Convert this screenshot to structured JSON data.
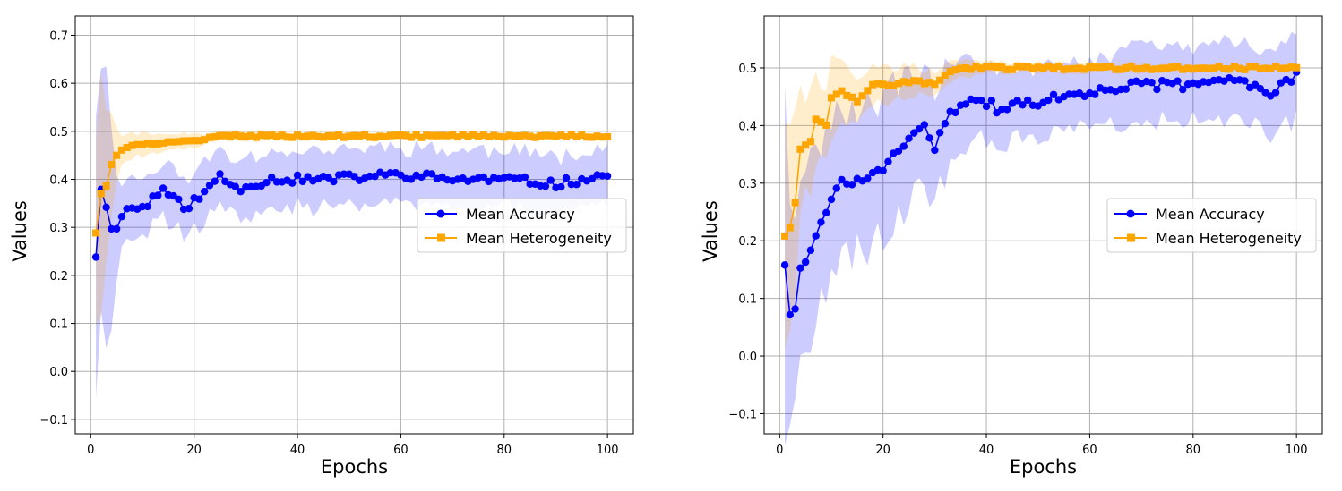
{
  "chart_data": [
    {
      "type": "line",
      "xlabel": "Epochs",
      "ylabel": "Values",
      "xlim": [
        -3,
        105
      ],
      "ylim": [
        -0.13,
        0.74
      ],
      "xticks": [
        0,
        20,
        40,
        60,
        80,
        100
      ],
      "yticks": [
        -0.1,
        0.0,
        0.1,
        0.2,
        0.3,
        0.4,
        0.5,
        0.6,
        0.7
      ],
      "ytick_labels": [
        "−0.1",
        "0.0",
        "0.1",
        "0.2",
        "0.3",
        "0.4",
        "0.5",
        "0.6",
        "0.7"
      ],
      "grid": true,
      "legend_position": "center-right",
      "series": [
        {
          "name": "Mean Accuracy",
          "color": "#0000ff",
          "marker": "circle",
          "anchors": [
            [
              1,
              0.24
            ],
            [
              2,
              0.38
            ],
            [
              3,
              0.34
            ],
            [
              4,
              0.3
            ],
            [
              5,
              0.3
            ],
            [
              7,
              0.34
            ],
            [
              10,
              0.34
            ],
            [
              14,
              0.38
            ],
            [
              18,
              0.34
            ],
            [
              22,
              0.37
            ],
            [
              25,
              0.41
            ],
            [
              28,
              0.38
            ],
            [
              35,
              0.4
            ],
            [
              45,
              0.4
            ],
            [
              60,
              0.41
            ],
            [
              70,
              0.4
            ],
            [
              80,
              0.4
            ],
            [
              90,
              0.39
            ],
            [
              100,
              0.41
            ]
          ],
          "band_half_width": [
            [
              1,
              0.33
            ],
            [
              2,
              0.32
            ],
            [
              3,
              0.25
            ],
            [
              6,
              0.07
            ],
            [
              10,
              0.06
            ],
            [
              20,
              0.06
            ],
            [
              40,
              0.06
            ],
            [
              100,
              0.06
            ]
          ]
        },
        {
          "name": "Mean Heterogeneity",
          "color": "#ffa500",
          "marker": "square",
          "anchors": [
            [
              1,
              0.29
            ],
            [
              2,
              0.37
            ],
            [
              3,
              0.39
            ],
            [
              4,
              0.43
            ],
            [
              5,
              0.45
            ],
            [
              7,
              0.47
            ],
            [
              10,
              0.47
            ],
            [
              15,
              0.48
            ],
            [
              20,
              0.48
            ],
            [
              25,
              0.49
            ],
            [
              30,
              0.49
            ],
            [
              40,
              0.49
            ],
            [
              100,
              0.49
            ]
          ],
          "band_half_width": [
            [
              1,
              0.2
            ],
            [
              2,
              0.22
            ],
            [
              3,
              0.17
            ],
            [
              6,
              0.03
            ],
            [
              12,
              0.02
            ],
            [
              25,
              0.01
            ],
            [
              100,
              0.005
            ]
          ]
        }
      ]
    },
    {
      "type": "line",
      "xlabel": "Epochs",
      "ylabel": "Values",
      "xlim": [
        -3,
        105
      ],
      "ylim": [
        -0.135,
        0.59
      ],
      "xticks": [
        0,
        20,
        40,
        60,
        80,
        100
      ],
      "yticks": [
        -0.1,
        0.0,
        0.1,
        0.2,
        0.3,
        0.4,
        0.5
      ],
      "ytick_labels": [
        "−0.1",
        "0.0",
        "0.1",
        "0.2",
        "0.3",
        "0.4",
        "0.5"
      ],
      "grid": true,
      "legend_position": "center-right",
      "series": [
        {
          "name": "Mean Accuracy",
          "color": "#0000ff",
          "marker": "circle",
          "anchors": [
            [
              1,
              0.16
            ],
            [
              2,
              0.07
            ],
            [
              3,
              0.08
            ],
            [
              4,
              0.15
            ],
            [
              6,
              0.18
            ],
            [
              8,
              0.23
            ],
            [
              10,
              0.28
            ],
            [
              12,
              0.3
            ],
            [
              15,
              0.3
            ],
            [
              20,
              0.33
            ],
            [
              25,
              0.37
            ],
            [
              28,
              0.41
            ],
            [
              30,
              0.35
            ],
            [
              32,
              0.41
            ],
            [
              36,
              0.44
            ],
            [
              38,
              0.45
            ],
            [
              42,
              0.43
            ],
            [
              50,
              0.44
            ],
            [
              60,
              0.46
            ],
            [
              70,
              0.47
            ],
            [
              80,
              0.47
            ],
            [
              88,
              0.48
            ],
            [
              95,
              0.46
            ],
            [
              100,
              0.49
            ]
          ],
          "band_half_width": [
            [
              1,
              0.26
            ],
            [
              2,
              0.17
            ],
            [
              5,
              0.18
            ],
            [
              10,
              0.13
            ],
            [
              20,
              0.12
            ],
            [
              30,
              0.1
            ],
            [
              40,
              0.06
            ],
            [
              60,
              0.06
            ],
            [
              100,
              0.07
            ]
          ]
        },
        {
          "name": "Mean Heterogeneity",
          "color": "#ffa500",
          "marker": "square",
          "anchors": [
            [
              1,
              0.21
            ],
            [
              2,
              0.22
            ],
            [
              3,
              0.27
            ],
            [
              4,
              0.36
            ],
            [
              6,
              0.37
            ],
            [
              7,
              0.41
            ],
            [
              9,
              0.4
            ],
            [
              10,
              0.45
            ],
            [
              12,
              0.46
            ],
            [
              15,
              0.44
            ],
            [
              18,
              0.47
            ],
            [
              22,
              0.47
            ],
            [
              26,
              0.48
            ],
            [
              30,
              0.47
            ],
            [
              32,
              0.49
            ],
            [
              36,
              0.5
            ],
            [
              40,
              0.5
            ],
            [
              100,
              0.5
            ]
          ],
          "band_half_width": [
            [
              1,
              0.25
            ],
            [
              2,
              0.18
            ],
            [
              4,
              0.1
            ],
            [
              8,
              0.07
            ],
            [
              15,
              0.04
            ],
            [
              30,
              0.02
            ],
            [
              40,
              0.01
            ],
            [
              100,
              0.005
            ]
          ]
        }
      ]
    }
  ]
}
